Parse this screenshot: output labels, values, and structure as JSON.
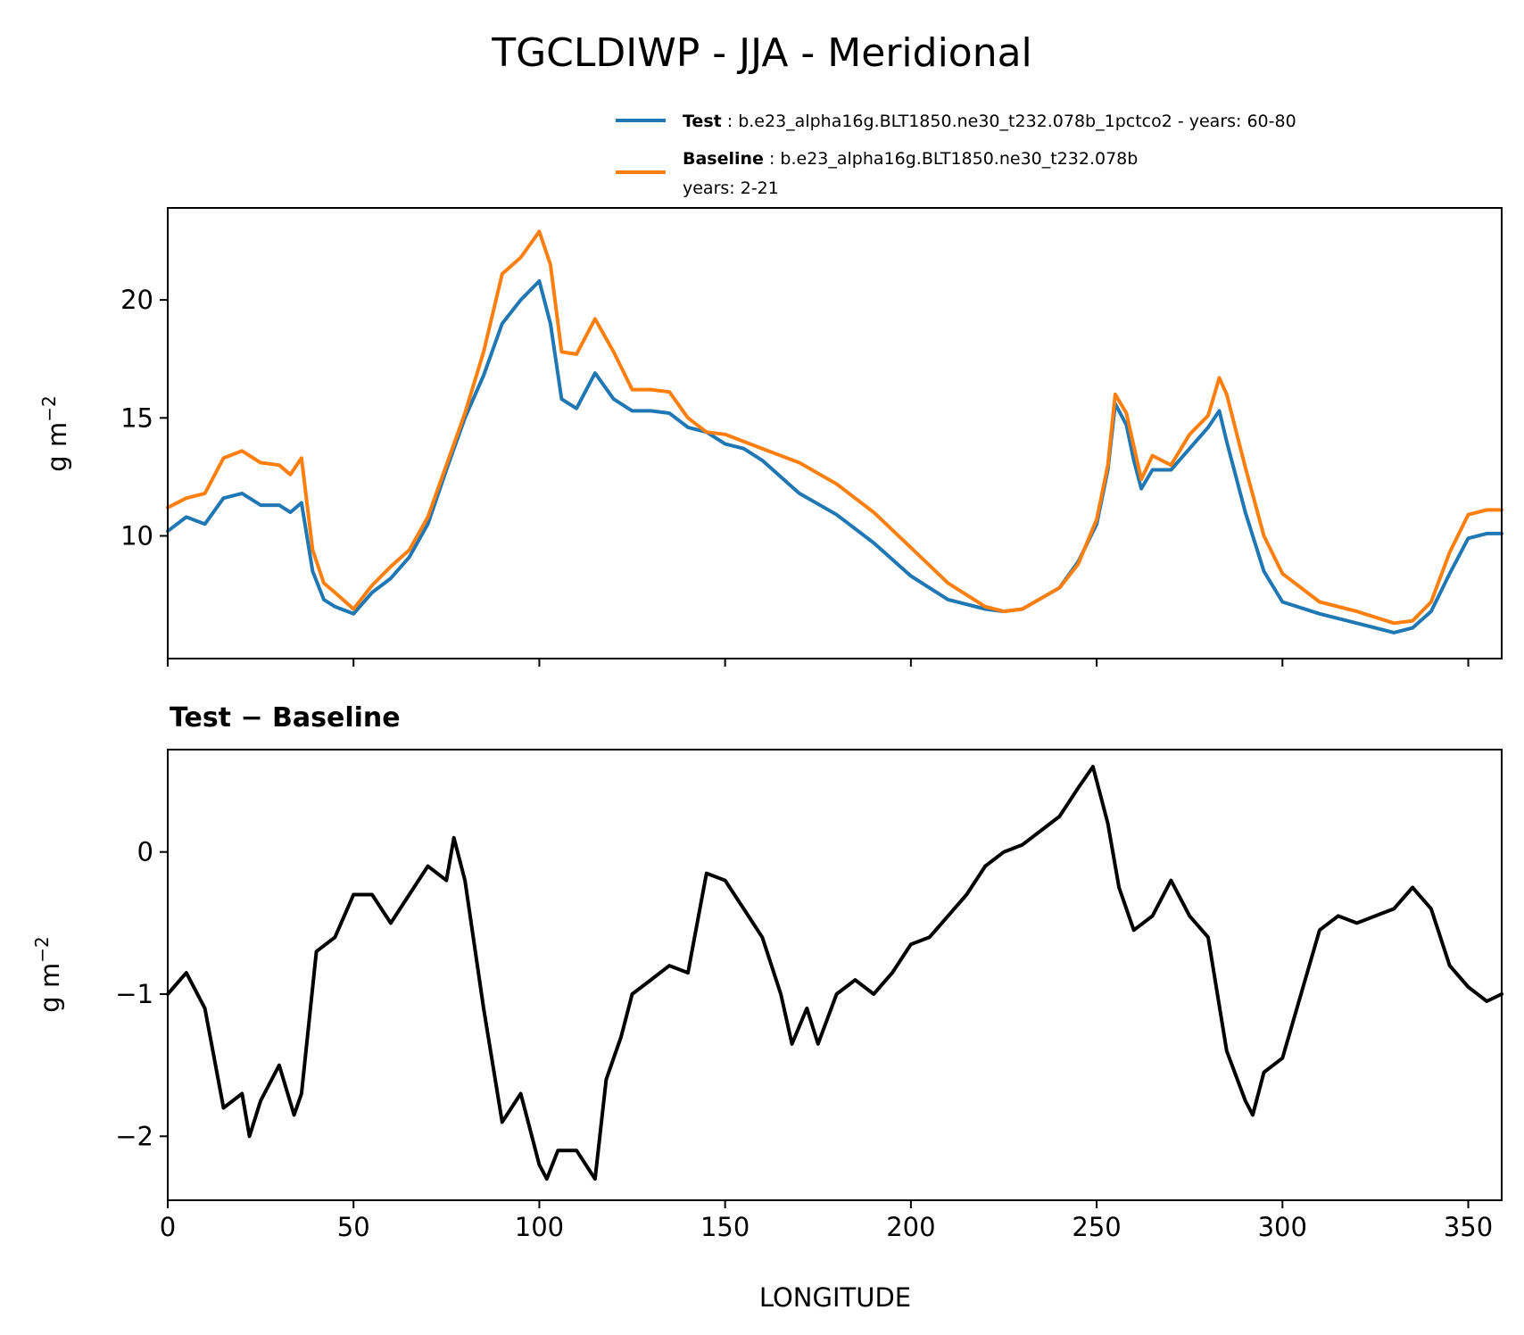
{
  "chart_data": [
    {
      "type": "line",
      "title": "TGCLDIWP - JJA - Meridional",
      "xlabel": "",
      "ylabel": "g m",
      "ylabel_superscript": "−2",
      "xlim": [
        0,
        359
      ],
      "ylim": [
        4.8,
        23.9
      ],
      "xticks": [
        0,
        50,
        100,
        150,
        200,
        250,
        300,
        350
      ],
      "yticks": [
        10,
        15,
        20
      ],
      "ytick_labels": [
        "10",
        "15",
        "20"
      ],
      "legend": {
        "position": "top-right",
        "entries": [
          {
            "name": "Test",
            "sep": " : ",
            "text": "b.e23_alpha16g.BLT1850.ne30_t232.078b_1pctco2 - years: 60-80",
            "text2": "",
            "color": "#1f77b4"
          },
          {
            "name": "Baseline",
            "sep": " : ",
            "text": "b.e23_alpha16g.BLT1850.ne30_t232.078b",
            "text2": "years: 2-21",
            "color": "#ff7f0e"
          }
        ]
      },
      "x": [
        0,
        5,
        10,
        15,
        20,
        25,
        30,
        33,
        36,
        39,
        42,
        45,
        50,
        55,
        60,
        65,
        70,
        75,
        80,
        85,
        90,
        95,
        100,
        103,
        106,
        110,
        115,
        120,
        125,
        130,
        135,
        140,
        145,
        150,
        155,
        160,
        170,
        180,
        190,
        200,
        210,
        220,
        225,
        230,
        240,
        245,
        250,
        253,
        255,
        258,
        260,
        262,
        265,
        270,
        275,
        280,
        283,
        285,
        290,
        295,
        300,
        310,
        320,
        330,
        335,
        340,
        345,
        350,
        355,
        359
      ],
      "series": [
        {
          "name": "Test",
          "color": "#1f77b4",
          "values": [
            10.2,
            10.8,
            10.5,
            11.6,
            11.8,
            11.3,
            11.3,
            11.0,
            11.4,
            8.5,
            7.3,
            7.0,
            6.7,
            7.6,
            8.2,
            9.1,
            10.5,
            12.8,
            15.0,
            16.8,
            19.0,
            20.0,
            20.8,
            19.0,
            15.8,
            15.4,
            16.9,
            15.8,
            15.3,
            15.3,
            15.2,
            14.6,
            14.4,
            13.9,
            13.7,
            13.2,
            11.8,
            10.9,
            9.7,
            8.3,
            7.3,
            6.9,
            6.8,
            6.9,
            7.8,
            8.9,
            10.5,
            12.8,
            15.6,
            14.7,
            13.2,
            12.0,
            12.8,
            12.8,
            13.7,
            14.6,
            15.3,
            14.0,
            11.0,
            8.5,
            7.2,
            6.7,
            6.3,
            5.9,
            6.1,
            6.8,
            8.4,
            9.9,
            10.1,
            10.1
          ]
        },
        {
          "name": "Baseline",
          "color": "#ff7f0e",
          "values": [
            11.2,
            11.6,
            11.8,
            13.3,
            13.6,
            13.1,
            13.0,
            12.6,
            13.3,
            9.4,
            8.0,
            7.6,
            6.9,
            7.9,
            8.7,
            9.4,
            10.8,
            13.0,
            15.2,
            17.8,
            21.1,
            21.8,
            22.9,
            21.5,
            17.8,
            17.7,
            19.2,
            17.8,
            16.2,
            16.2,
            16.1,
            15.0,
            14.4,
            14.3,
            14.0,
            13.7,
            13.1,
            12.2,
            11.0,
            9.5,
            8.0,
            7.0,
            6.8,
            6.9,
            7.8,
            8.8,
            10.7,
            13.0,
            16.0,
            15.2,
            13.8,
            12.4,
            13.4,
            13.0,
            14.3,
            15.1,
            16.7,
            16.0,
            12.9,
            10.0,
            8.4,
            7.2,
            6.8,
            6.3,
            6.4,
            7.2,
            9.3,
            10.9,
            11.1,
            11.1
          ]
        }
      ]
    },
    {
      "type": "line",
      "title": "Test − Baseline",
      "xlabel": "LONGITUDE",
      "ylabel": "g m",
      "ylabel_superscript": "−2",
      "xlim": [
        0,
        359
      ],
      "ylim": [
        -2.45,
        0.72
      ],
      "xticks": [
        0,
        50,
        100,
        150,
        200,
        250,
        300,
        350
      ],
      "xtick_labels": [
        "0",
        "50",
        "100",
        "150",
        "200",
        "250",
        "300",
        "350"
      ],
      "yticks": [
        -2,
        -1,
        0
      ],
      "ytick_labels": [
        "−2",
        "−1",
        "0"
      ],
      "x": [
        0,
        5,
        10,
        15,
        20,
        22,
        25,
        30,
        34,
        36,
        40,
        45,
        50,
        55,
        60,
        65,
        70,
        75,
        77,
        80,
        85,
        90,
        95,
        100,
        102,
        105,
        110,
        115,
        118,
        122,
        125,
        130,
        135,
        140,
        145,
        150,
        155,
        160,
        165,
        168,
        172,
        175,
        180,
        185,
        190,
        195,
        200,
        205,
        210,
        215,
        220,
        225,
        230,
        240,
        245,
        249,
        253,
        256,
        260,
        265,
        270,
        275,
        280,
        285,
        290,
        292,
        295,
        300,
        305,
        310,
        315,
        320,
        325,
        330,
        335,
        340,
        345,
        350,
        355,
        359
      ],
      "series": [
        {
          "name": "Test − Baseline",
          "color": "#000000",
          "values": [
            -1.0,
            -0.85,
            -1.1,
            -1.8,
            -1.7,
            -2.0,
            -1.75,
            -1.5,
            -1.85,
            -1.7,
            -0.7,
            -0.6,
            -0.3,
            -0.3,
            -0.5,
            -0.3,
            -0.1,
            -0.2,
            0.1,
            -0.2,
            -1.1,
            -1.9,
            -1.7,
            -2.2,
            -2.3,
            -2.1,
            -2.1,
            -2.3,
            -1.6,
            -1.3,
            -1.0,
            -0.9,
            -0.8,
            -0.85,
            -0.15,
            -0.2,
            -0.4,
            -0.6,
            -1.0,
            -1.35,
            -1.1,
            -1.35,
            -1.0,
            -0.9,
            -1.0,
            -0.85,
            -0.65,
            -0.6,
            -0.45,
            -0.3,
            -0.1,
            0.0,
            0.05,
            0.25,
            0.45,
            0.6,
            0.2,
            -0.25,
            -0.55,
            -0.45,
            -0.2,
            -0.45,
            -0.6,
            -1.4,
            -1.75,
            -1.85,
            -1.55,
            -1.45,
            -1.0,
            -0.55,
            -0.45,
            -0.5,
            -0.45,
            -0.4,
            -0.25,
            -0.4,
            -0.8,
            -0.95,
            -1.05,
            -1.0
          ]
        }
      ]
    }
  ]
}
